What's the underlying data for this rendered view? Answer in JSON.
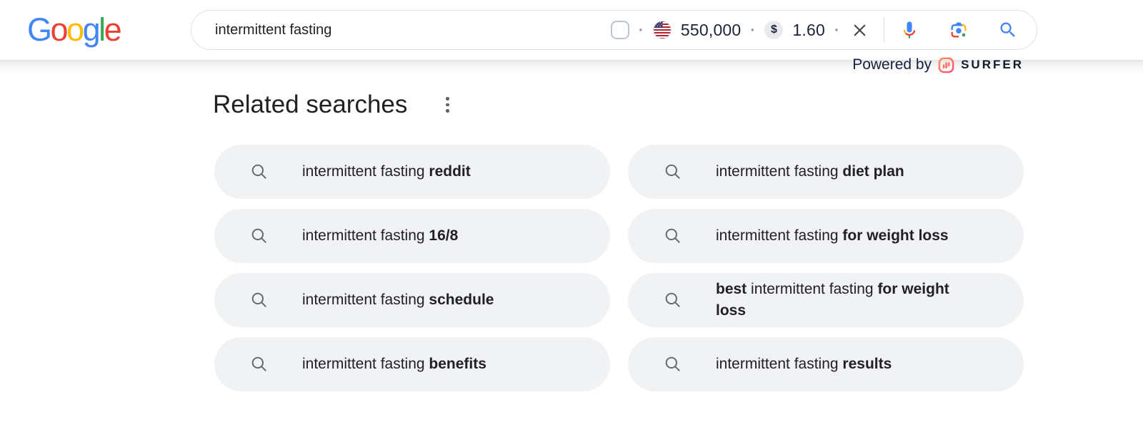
{
  "header": {
    "logo_letters": [
      {
        "char": "G",
        "color": "#4285F4"
      },
      {
        "char": "o",
        "color": "#EA4335"
      },
      {
        "char": "o",
        "color": "#FBBC05"
      },
      {
        "char": "g",
        "color": "#4285F4"
      },
      {
        "char": "l",
        "color": "#34A853"
      },
      {
        "char": "e",
        "color": "#EA4335"
      }
    ],
    "search": {
      "query": "intermittent fasting",
      "volume": "550,000",
      "cpc": "1.60",
      "cpc_symbol": "$",
      "separator": "·"
    },
    "powered_by": {
      "text": "Powered by",
      "brand": "SURFER"
    }
  },
  "main": {
    "heading": "Related searches",
    "suggestions": [
      {
        "segments": [
          {
            "text": "intermittent fasting ",
            "bold": false
          },
          {
            "text": "reddit",
            "bold": true
          }
        ]
      },
      {
        "segments": [
          {
            "text": "intermittent fasting ",
            "bold": false
          },
          {
            "text": "diet plan",
            "bold": true
          }
        ]
      },
      {
        "segments": [
          {
            "text": "intermittent fasting ",
            "bold": false
          },
          {
            "text": "16/8",
            "bold": true
          }
        ]
      },
      {
        "segments": [
          {
            "text": "intermittent fasting ",
            "bold": false
          },
          {
            "text": "for weight loss",
            "bold": true
          }
        ]
      },
      {
        "segments": [
          {
            "text": "intermittent fasting ",
            "bold": false
          },
          {
            "text": "schedule",
            "bold": true
          }
        ]
      },
      {
        "segments": [
          {
            "text": "best",
            "bold": true
          },
          {
            "text": " intermittent fasting ",
            "bold": false
          },
          {
            "text": "for weight loss",
            "bold": true
          }
        ]
      },
      {
        "segments": [
          {
            "text": "intermittent fasting ",
            "bold": false
          },
          {
            "text": "benefits",
            "bold": true
          }
        ]
      },
      {
        "segments": [
          {
            "text": "intermittent fasting ",
            "bold": false
          },
          {
            "text": "results",
            "bold": true
          }
        ]
      }
    ]
  },
  "colors": {
    "pill_bg": "#f1f2f4",
    "text": "#202124",
    "google_blue": "#4285F4",
    "google_red": "#EA4335",
    "google_yellow": "#FBBC05",
    "google_green": "#34A853",
    "surfer_gradient_start": "#FF9357",
    "surfer_gradient_end": "#FF4E78",
    "metric_text": "#1c2438",
    "searchbar_border": "#dfe1e5"
  }
}
